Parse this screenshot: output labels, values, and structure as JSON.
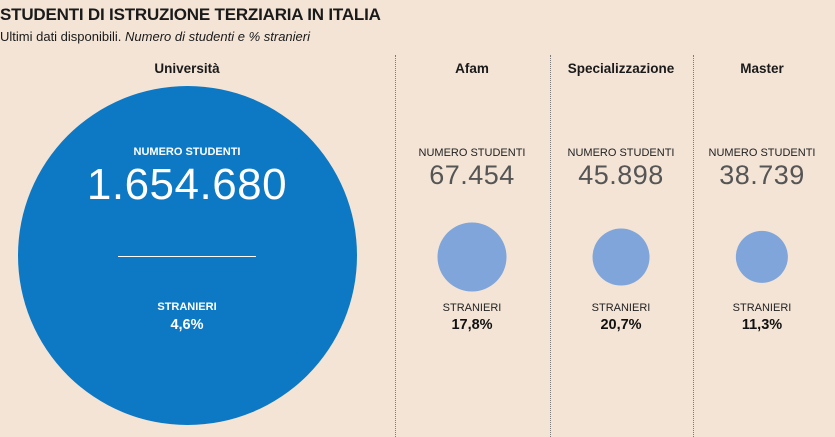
{
  "title": "STUDENTI DI ISTRUZIONE TERZIARIA IN ITALIA",
  "subtitle": "Ultimi dati disponibili.",
  "subtitle_italic": "Numero di studenti e % stranieri",
  "colors": {
    "background": "#f3e4d6",
    "university_circle": "#0d79c4",
    "other_circles": "#7fa5db"
  },
  "chart_data": {
    "type": "bubble",
    "columns": [
      {
        "category": "Università",
        "students_label": "NUMERO STUDENTI",
        "students": 1654680,
        "students_text": "1.654.680",
        "foreign_label": "STRANIERI",
        "foreign_pct": 4.6,
        "foreign_text": "4,6%"
      },
      {
        "category": "Afam",
        "students_label": "NUMERO STUDENTI",
        "students": 67454,
        "students_text": "67.454",
        "foreign_label": "STRANIERI",
        "foreign_pct": 17.8,
        "foreign_text": "17,8%"
      },
      {
        "category": "Specializzazione",
        "students_label": "NUMERO STUDENTI",
        "students": 45898,
        "students_text": "45.898",
        "foreign_label": "STRANIERI",
        "foreign_pct": 20.7,
        "foreign_text": "20,7%"
      },
      {
        "category": "Master",
        "students_label": "NUMERO STUDENTI",
        "students": 38739,
        "students_text": "38.739",
        "foreign_label": "STRANIERI",
        "foreign_pct": 11.3,
        "foreign_text": "11,3%"
      }
    ]
  }
}
